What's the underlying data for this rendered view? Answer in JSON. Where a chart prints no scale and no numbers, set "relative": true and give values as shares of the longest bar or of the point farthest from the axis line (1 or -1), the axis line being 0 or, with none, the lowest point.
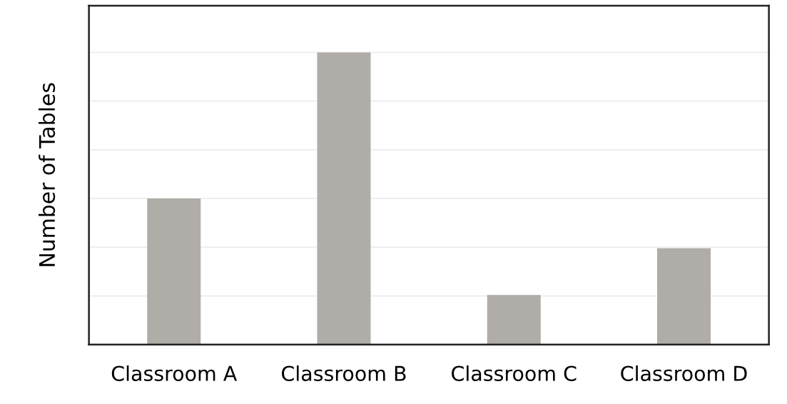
{
  "chart_data": {
    "type": "bar",
    "ylabel": "Number of Tables",
    "categories": [
      "Classroom A",
      "Classroom B",
      "Classroom C",
      "Classroom D"
    ],
    "values": [
      0.5,
      1,
      0.17,
      0.33
    ],
    "color": "#b0ada8",
    "relative": true,
    "grid": "y",
    "tick_labels": "x"
  }
}
